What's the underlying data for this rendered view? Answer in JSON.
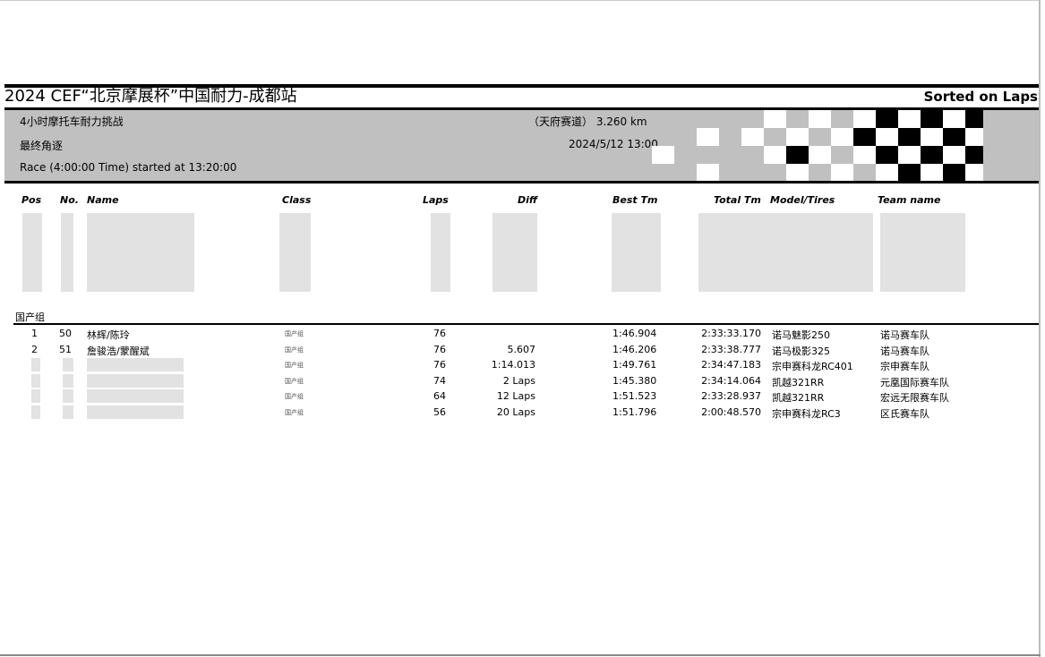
{
  "header": {
    "title": "2024 CEF“北京摩展杯”中国耐力-成都站",
    "sorted": "Sorted on Laps",
    "event": "4小时摩托车耐力挑战",
    "session": "最终角逐",
    "race_info": "Race (4:00:00 Time) started at 13:20:00",
    "track": "（天府赛道） 3.260 km",
    "datetime": "2024/5/12 13:00"
  },
  "columns": [
    "Pos",
    "No.",
    "Name",
    "Class",
    "Laps",
    "Diff",
    "Best Tm",
    "Total Tm",
    "Model/Tires",
    "Team name"
  ],
  "group": {
    "label": "国产组",
    "rows": [
      {
        "pos": "1",
        "no": "50",
        "name": "林辉/陈玲",
        "class": "国产组",
        "laps": "76",
        "diff": "",
        "best": "1:46.904",
        "total": "2:33:33.170",
        "model": "诺马魅影250",
        "team": "诺马赛车队"
      },
      {
        "pos": "2",
        "no": "51",
        "name": "詹骏浩/蒙醒斌",
        "class": "国产组",
        "laps": "76",
        "diff": "5.607",
        "best": "1:46.206",
        "total": "2:33:38.777",
        "model": "诺马极影325",
        "team": "诺马赛车队"
      },
      {
        "pos": "",
        "no": "",
        "name": "",
        "class": "国产组",
        "laps": "76",
        "diff": "1:14.013",
        "best": "1:49.761",
        "total": "2:34:47.183",
        "model": "宗申赛科龙RC401",
        "team": "宗申赛车队"
      },
      {
        "pos": "",
        "no": "",
        "name": "",
        "class": "国产组",
        "laps": "74",
        "diff": "2 Laps",
        "best": "1:45.380",
        "total": "2:34:14.064",
        "model": "凯越321RR",
        "team": "元凰国际赛车队"
      },
      {
        "pos": "",
        "no": "",
        "name": "",
        "class": "国产组",
        "laps": "64",
        "diff": "12 Laps",
        "best": "1:51.523",
        "total": "2:33:28.937",
        "model": "凯越321RR",
        "team": "宏远无限赛车队"
      },
      {
        "pos": "",
        "no": "",
        "name": "",
        "class": "国产组",
        "laps": "56",
        "diff": "20 Laps",
        "best": "1:51.796",
        "total": "2:00:48.570",
        "model": "宗申赛科龙RC3",
        "team": "区氏赛车队"
      }
    ]
  }
}
